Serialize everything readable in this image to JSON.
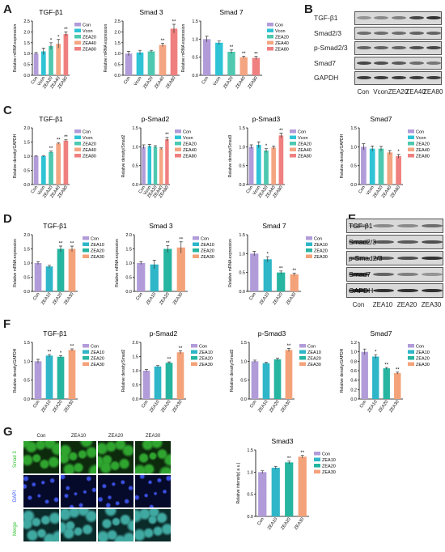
{
  "panels": {
    "A": "A",
    "B": "B",
    "C": "C",
    "D": "D",
    "E": "E",
    "F": "F",
    "G": "G"
  },
  "colors": {
    "con": "#b19cd9",
    "vcon": "#2ec4d6",
    "zea20": "#4ec9b0",
    "zea40": "#f4a582",
    "zea80": "#f08080",
    "zea10": "#2fb6c8",
    "zea20b": "#26b5a0",
    "zea30": "#f4a27a"
  },
  "chart_data": [
    {
      "id": "A1",
      "type": "bar",
      "title": "TGF-β1",
      "ylabel": "Relative mRNA expression",
      "categories": [
        "Con",
        "Vcon",
        "ZEA20",
        "ZEA40",
        "ZEA80"
      ],
      "values": [
        1.0,
        1.1,
        1.35,
        1.45,
        1.9
      ],
      "errors": [
        0.05,
        0.15,
        0.15,
        0.2,
        0.1
      ],
      "sig": [
        "",
        "",
        "*",
        "*",
        "**"
      ],
      "ylim": [
        0,
        2.5
      ],
      "yticks": [
        "0.0",
        "0.5",
        "1.0",
        "1.5",
        "2.0",
        "2.5"
      ],
      "legend": [
        "Con",
        "Vcon",
        "ZEA20",
        "ZEA40",
        "ZEA80"
      ]
    },
    {
      "id": "A2",
      "type": "bar",
      "title": "Smad 3",
      "ylabel": "Relative mRNA expression",
      "categories": [
        "Con",
        "Vcon",
        "ZEA20",
        "ZEA40",
        "ZEA80"
      ],
      "values": [
        1.0,
        1.05,
        1.1,
        1.4,
        2.15
      ],
      "errors": [
        0.1,
        0.1,
        0.05,
        0.08,
        0.2
      ],
      "sig": [
        "",
        "",
        "",
        "**",
        "**"
      ],
      "ylim": [
        0,
        2.5
      ],
      "yticks": [
        "0.0",
        "0.5",
        "1.0",
        "1.5",
        "2.0",
        "2.5"
      ],
      "legend": []
    },
    {
      "id": "A3",
      "type": "bar",
      "title": "Smad 7",
      "ylabel": "Relative mRNA expression",
      "categories": [
        "Con",
        "Vcon",
        "ZEA20",
        "ZEA40",
        "ZEA80"
      ],
      "values": [
        1.0,
        0.9,
        0.65,
        0.5,
        0.48
      ],
      "errors": [
        0.08,
        0.05,
        0.05,
        0.03,
        0.04
      ],
      "sig": [
        "",
        "",
        "**",
        "**",
        "**"
      ],
      "ylim": [
        0,
        1.5
      ],
      "yticks": [
        "0.0",
        "0.5",
        "1.0",
        "1.5"
      ],
      "legend": [
        "Con",
        "Vcon",
        "ZEA20",
        "ZEA40",
        "ZEA80"
      ]
    },
    {
      "id": "C1",
      "type": "bar",
      "title": "TGF-β1",
      "ylabel": "Relative density/GAPDH",
      "categories": [
        "Con",
        "Vcon",
        "ZEA20",
        "ZEA40",
        "ZEA80"
      ],
      "values": [
        1.0,
        1.0,
        1.15,
        1.45,
        1.55
      ],
      "errors": [
        0.02,
        0.02,
        0.03,
        0.03,
        0.03
      ],
      "sig": [
        "",
        "",
        "**",
        "**",
        "**"
      ],
      "ylim": [
        0,
        2.0
      ],
      "yticks": [
        "0.0",
        "0.5",
        "1.0",
        "1.5",
        "2.0"
      ],
      "legend": [
        "Con",
        "Vcon",
        "ZEA20",
        "ZEA40",
        "ZEA80"
      ]
    },
    {
      "id": "C2",
      "type": "bar",
      "title": "p-Smad2",
      "ylabel": "Relative density/Smad2",
      "categories": [
        "Con",
        "Vcon",
        "ZEA20",
        "ZEA40",
        "ZEA80"
      ],
      "values": [
        1.0,
        1.02,
        1.0,
        0.95,
        1.2
      ],
      "errors": [
        0.05,
        0.04,
        0.03,
        0.02,
        0.05
      ],
      "sig": [
        "",
        "",
        "",
        "",
        "**"
      ],
      "ylim": [
        0,
        1.5
      ],
      "yticks": [
        "0.0",
        "0.5",
        "1.0",
        "1.5"
      ],
      "legend": [
        "Con",
        "Vcon",
        "ZEA20",
        "ZEA40",
        "ZEA80"
      ]
    },
    {
      "id": "C3",
      "type": "bar",
      "title": "p-Smad3",
      "ylabel": "Relative density/Smad3",
      "categories": [
        "Con",
        "Vcon",
        "ZEA20",
        "ZEA40",
        "ZEA80"
      ],
      "values": [
        1.0,
        1.05,
        0.9,
        0.98,
        1.3
      ],
      "errors": [
        0.05,
        0.08,
        0.05,
        0.04,
        0.06
      ],
      "sig": [
        "",
        "",
        "*",
        "",
        "**"
      ],
      "ylim": [
        0,
        1.5
      ],
      "yticks": [
        "0.0",
        "0.5",
        "1.0",
        "1.5"
      ],
      "legend": [
        "Con",
        "Vcon",
        "ZEA20",
        "ZEA40",
        "ZEA80"
      ]
    },
    {
      "id": "C4",
      "type": "bar",
      "title": "Smad7",
      "ylabel": "Relative density/GAPDH",
      "categories": [
        "Con",
        "Vcon",
        "ZEA20",
        "ZEA40",
        "ZEA80"
      ],
      "values": [
        1.0,
        0.95,
        0.95,
        0.85,
        0.75
      ],
      "errors": [
        0.08,
        0.07,
        0.06,
        0.05,
        0.05
      ],
      "sig": [
        "",
        "",
        "",
        "",
        "*"
      ],
      "ylim": [
        0,
        1.5
      ],
      "yticks": [
        "0.0",
        "0.5",
        "1.0",
        "1.5"
      ],
      "legend": [
        "Con",
        "Vcon",
        "ZEA20",
        "ZEA40",
        "ZEA80"
      ]
    },
    {
      "id": "D1",
      "type": "bar",
      "title": "TGF-β1",
      "ylabel": "Relative mRNA expression",
      "categories": [
        "Con",
        "ZEA10",
        "ZEA20",
        "ZEA30"
      ],
      "values": [
        1.0,
        0.88,
        1.5,
        1.5
      ],
      "errors": [
        0.05,
        0.04,
        0.1,
        0.1
      ],
      "sig": [
        "",
        "",
        "**",
        "**"
      ],
      "ylim": [
        0,
        2.0
      ],
      "yticks": [
        "0.0",
        "0.5",
        "1.0",
        "1.5",
        "2.0"
      ],
      "legend": [
        "Con",
        "ZEA10",
        "ZEA20",
        "ZEA30"
      ]
    },
    {
      "id": "D2",
      "type": "bar",
      "title": "Smad 3",
      "ylabel": "Relative mRNA expression",
      "categories": [
        "Con",
        "ZEA10",
        "ZEA20",
        "ZEA30"
      ],
      "values": [
        1.0,
        0.95,
        1.5,
        1.55
      ],
      "errors": [
        0.05,
        0.15,
        0.12,
        0.2
      ],
      "sig": [
        "",
        "",
        "**",
        "**"
      ],
      "ylim": [
        0,
        2.0
      ],
      "yticks": [
        "0.0",
        "0.5",
        "1.0",
        "1.5",
        "2.0"
      ],
      "legend": [
        "Con",
        "ZEA10",
        "ZEA20",
        "ZEA30"
      ]
    },
    {
      "id": "D3",
      "type": "bar",
      "title": "Smad 7",
      "ylabel": "Relative mRNA expression",
      "categories": [
        "Con",
        "ZEA10",
        "ZEA20",
        "ZEA30"
      ],
      "values": [
        1.0,
        0.85,
        0.5,
        0.45
      ],
      "errors": [
        0.06,
        0.07,
        0.04,
        0.03
      ],
      "sig": [
        "",
        "*",
        "**",
        "**"
      ],
      "ylim": [
        0,
        1.5
      ],
      "yticks": [
        "0.0",
        "0.5",
        "1.0",
        "1.5"
      ],
      "legend": [
        "Con",
        "ZEA10",
        "ZEA20",
        "ZEA30"
      ]
    },
    {
      "id": "F1",
      "type": "bar",
      "title": "TGF-β1",
      "ylabel": "Relative density/GAPDH",
      "categories": [
        "Con",
        "ZEA10",
        "ZEA20",
        "ZEA30"
      ],
      "values": [
        1.0,
        1.15,
        1.12,
        1.3
      ],
      "errors": [
        0.05,
        0.03,
        0.03,
        0.03
      ],
      "sig": [
        "",
        "**",
        "*",
        "**"
      ],
      "ylim": [
        0,
        1.5
      ],
      "yticks": [
        "0.0",
        "0.5",
        "1.0",
        "1.5"
      ],
      "legend": [
        "Con",
        "ZEA10",
        "ZEA20",
        "ZEA30"
      ]
    },
    {
      "id": "F2",
      "type": "bar",
      "title": "p-Smad2",
      "ylabel": "Relative density/Smad2",
      "categories": [
        "Con",
        "ZEA10",
        "ZEA20",
        "ZEA30"
      ],
      "values": [
        1.0,
        1.15,
        1.28,
        1.65
      ],
      "errors": [
        0.04,
        0.03,
        0.03,
        0.05
      ],
      "sig": [
        "",
        "",
        "**",
        "**"
      ],
      "ylim": [
        0,
        2.0
      ],
      "yticks": [
        "0.0",
        "0.5",
        "1.0",
        "1.5",
        "2.0"
      ],
      "legend": [
        "Con",
        "ZEA10",
        "ZEA20",
        "ZEA30"
      ]
    },
    {
      "id": "F3",
      "type": "bar",
      "title": "p-Smad3",
      "ylabel": "Relative density/Smad3",
      "categories": [
        "Con",
        "ZEA10",
        "ZEA20",
        "ZEA30"
      ],
      "values": [
        1.0,
        0.95,
        1.05,
        1.3
      ],
      "errors": [
        0.03,
        0.02,
        0.03,
        0.04
      ],
      "sig": [
        "",
        "",
        "",
        "**"
      ],
      "ylim": [
        0,
        1.5
      ],
      "yticks": [
        "0.0",
        "0.5",
        "1.0",
        "1.5"
      ],
      "legend": [
        "Con",
        "ZEA10",
        "ZEA20",
        "ZEA30"
      ]
    },
    {
      "id": "F4",
      "type": "bar",
      "title": "Smad7",
      "ylabel": "Relative density/GAPDH",
      "categories": [
        "Con",
        "ZEA10",
        "ZEA20",
        "ZEA30"
      ],
      "values": [
        1.0,
        0.9,
        0.65,
        0.55
      ],
      "errors": [
        0.06,
        0.04,
        0.02,
        0.02
      ],
      "sig": [
        "",
        "*",
        "**",
        "**"
      ],
      "ylim": [
        0,
        1.2
      ],
      "yticks": [
        "0.0",
        "0.2",
        "0.4",
        "0.6",
        "0.8",
        "1.0",
        "1.2"
      ],
      "legend": [
        "Con",
        "ZEA10",
        "ZEA20",
        "ZEA30"
      ]
    },
    {
      "id": "G1",
      "type": "bar",
      "title": "Smad3",
      "ylabel": "Relative intensity( a.u.)",
      "categories": [
        "Con",
        "ZEA10",
        "ZEA20",
        "ZEA30"
      ],
      "values": [
        1.0,
        1.1,
        1.22,
        1.35
      ],
      "errors": [
        0.03,
        0.03,
        0.03,
        0.03
      ],
      "sig": [
        "",
        "",
        "**",
        "**"
      ],
      "ylim": [
        0,
        1.5
      ],
      "yticks": [
        "0.0",
        "0.5",
        "1.0",
        "1.5"
      ],
      "legend": [
        "Con",
        "ZEA10",
        "ZEA20",
        "ZEA30"
      ]
    }
  ],
  "blotB": {
    "rows": [
      "TGF-β1",
      "Smad2/3",
      "p-Smad2/3",
      "Smad7",
      "GAPDH"
    ],
    "lanes": [
      "Con",
      "Vcon",
      "ZEA20",
      "ZEA40",
      "ZEA80"
    ]
  },
  "blotE": {
    "rows": [
      "TGF-β1",
      "Smad2/3",
      "p-Smad2/3",
      "Smad7",
      "GAPDH"
    ],
    "lanes": [
      "Con",
      "ZEA10",
      "ZEA20",
      "ZEA30"
    ]
  },
  "micro": {
    "cols": [
      "Con",
      "ZEA10",
      "ZEA20",
      "ZEA30"
    ],
    "rows": [
      "Smad 3",
      "DAPI",
      "Merge"
    ]
  }
}
